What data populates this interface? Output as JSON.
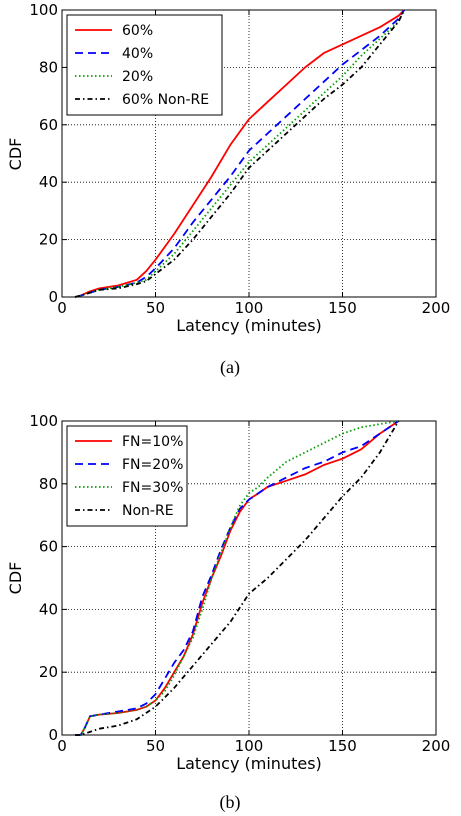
{
  "chart_data": [
    {
      "type": "line",
      "panel": "(a)",
      "xlabel": "Latency (minutes)",
      "ylabel": "CDF",
      "xlim": [
        0,
        200
      ],
      "ylim": [
        0,
        100
      ],
      "xticks": [
        "0",
        "50",
        "100",
        "150",
        "200"
      ],
      "yticks": [
        "0",
        "20",
        "40",
        "60",
        "80",
        "100"
      ],
      "grid": true,
      "legend_position": "top-left",
      "series": [
        {
          "name": "60%",
          "color": "#ff0000",
          "dash": "solid",
          "x": [
            7,
            10,
            15,
            20,
            30,
            40,
            45,
            50,
            60,
            70,
            80,
            90,
            100,
            110,
            120,
            130,
            140,
            150,
            160,
            170,
            180,
            183
          ],
          "y": [
            0,
            0.5,
            2,
            3,
            4,
            6,
            9,
            13,
            22,
            32,
            42,
            53,
            62,
            68,
            74,
            80,
            85,
            88,
            91,
            94,
            98,
            100
          ]
        },
        {
          "name": "40%",
          "color": "#0000ff",
          "dash": "8,5",
          "x": [
            7,
            10,
            15,
            20,
            30,
            40,
            45,
            50,
            60,
            70,
            80,
            90,
            100,
            110,
            120,
            130,
            140,
            150,
            160,
            170,
            180,
            183
          ],
          "y": [
            0,
            0.5,
            1.5,
            2.5,
            3.5,
            5,
            7,
            10,
            17,
            26,
            34,
            42,
            51,
            57,
            63,
            69,
            75,
            81,
            86,
            91,
            97,
            100
          ]
        },
        {
          "name": "20%",
          "color": "#00a000",
          "dash": "1.5,2.5",
          "x": [
            7,
            10,
            15,
            20,
            30,
            40,
            45,
            50,
            60,
            70,
            80,
            90,
            100,
            110,
            120,
            130,
            140,
            150,
            160,
            170,
            180,
            183
          ],
          "y": [
            0,
            0.5,
            1.5,
            2.5,
            3.5,
            5,
            6,
            9,
            15,
            23,
            31,
            39,
            47,
            53,
            59,
            65,
            71,
            77,
            84,
            90,
            96,
            100
          ]
        },
        {
          "name": "60% Non-RE",
          "color": "#000000",
          "dash": "5,3,1.5,3",
          "x": [
            7,
            10,
            15,
            20,
            30,
            40,
            45,
            50,
            60,
            70,
            80,
            90,
            100,
            110,
            120,
            130,
            140,
            150,
            160,
            170,
            180,
            183
          ],
          "y": [
            0,
            0.5,
            1.5,
            2.5,
            3,
            4.5,
            5.5,
            8,
            13,
            20,
            28,
            36,
            45,
            51,
            57,
            63,
            69,
            74,
            80,
            88,
            96,
            100
          ]
        }
      ]
    },
    {
      "type": "line",
      "panel": "(b)",
      "xlabel": "Latency (minutes)",
      "ylabel": "CDF",
      "xlim": [
        0,
        200
      ],
      "ylim": [
        0,
        100
      ],
      "xticks": [
        "0",
        "50",
        "100",
        "150",
        "200"
      ],
      "yticks": [
        "0",
        "20",
        "40",
        "60",
        "80",
        "100"
      ],
      "grid": true,
      "legend_position": "top-left",
      "series": [
        {
          "name": "FN=10%",
          "color": "#ff0000",
          "dash": "solid",
          "x": [
            7,
            10,
            12,
            15,
            20,
            30,
            40,
            45,
            50,
            55,
            60,
            65,
            70,
            75,
            80,
            85,
            90,
            95,
            100,
            105,
            110,
            120,
            130,
            140,
            150,
            160,
            170,
            180
          ],
          "y": [
            0,
            0,
            2,
            6,
            6.5,
            7,
            8,
            9,
            11,
            15,
            20,
            25,
            32,
            42,
            50,
            57,
            65,
            71,
            75,
            77,
            79,
            81,
            83,
            86,
            88,
            91,
            96,
            100
          ]
        },
        {
          "name": "FN=20%",
          "color": "#0000ff",
          "dash": "8,5",
          "x": [
            7,
            10,
            12,
            15,
            20,
            30,
            40,
            45,
            50,
            55,
            60,
            65,
            70,
            75,
            80,
            85,
            90,
            95,
            100,
            105,
            110,
            120,
            130,
            140,
            150,
            160,
            170,
            180
          ],
          "y": [
            0,
            0,
            2,
            6,
            6.5,
            7.5,
            8.5,
            10,
            13,
            18,
            23,
            27,
            33,
            44,
            51,
            59,
            66,
            72,
            75,
            77,
            79,
            82,
            85,
            87,
            90,
            92,
            96,
            100
          ]
        },
        {
          "name": "FN=30%",
          "color": "#00a000",
          "dash": "1.5,2.5",
          "x": [
            7,
            10,
            12,
            15,
            20,
            30,
            40,
            45,
            50,
            55,
            60,
            65,
            70,
            75,
            80,
            85,
            90,
            95,
            100,
            105,
            110,
            120,
            130,
            140,
            150,
            160,
            170,
            180
          ],
          "y": [
            0,
            0,
            2,
            6,
            6.5,
            7,
            8,
            9,
            11,
            14,
            19,
            25,
            31,
            40,
            50,
            58,
            66,
            73,
            77,
            79,
            82,
            87,
            90,
            93,
            96,
            98,
            99,
            100
          ]
        },
        {
          "name": "Non-RE",
          "color": "#000000",
          "dash": "5,3,1.5,3",
          "x": [
            7,
            10,
            15,
            20,
            30,
            40,
            50,
            55,
            60,
            70,
            80,
            90,
            100,
            110,
            120,
            130,
            140,
            150,
            160,
            170,
            180
          ],
          "y": [
            0,
            0,
            1,
            2,
            3,
            5,
            9,
            12,
            15,
            22,
            29,
            36,
            45,
            50,
            56,
            62,
            69,
            76,
            82,
            90,
            100
          ]
        }
      ]
    }
  ],
  "captions": [
    "(a)",
    "(b)"
  ]
}
